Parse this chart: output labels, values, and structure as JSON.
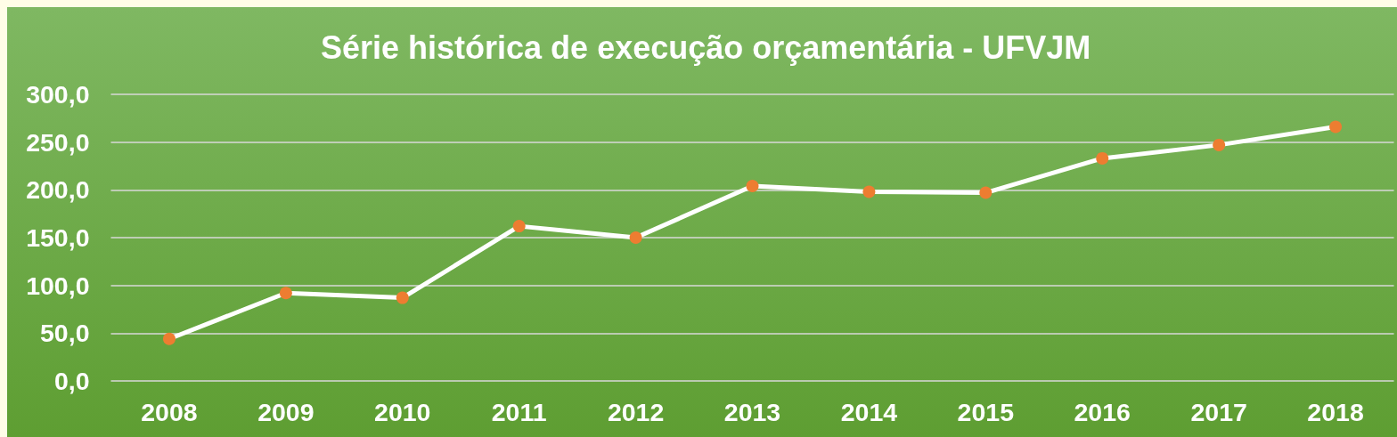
{
  "chart_data": {
    "type": "line",
    "title": "Série histórica de execução orçamentária - UFVJM",
    "categories": [
      "2008",
      "2009",
      "2010",
      "2011",
      "2012",
      "2013",
      "2014",
      "2015",
      "2016",
      "2017",
      "2018"
    ],
    "series": [
      {
        "color": "#ffffff",
        "colors": [
          "#ed7d31",
          "#ed7d31",
          "#ed7d31",
          "#ed7d31",
          "#ed7d31",
          "#ed7d31",
          "#ed7d31",
          "#ed7d31",
          "#ed7d31",
          "#ed7d31",
          "#ed7d31"
        ],
        "values": [
          44,
          92,
          87,
          162,
          150,
          204,
          198,
          197,
          233,
          247,
          266
        ]
      }
    ],
    "ylim": [
      0,
      300
    ],
    "yticks": [
      {
        "value": 0,
        "label": "0,0"
      },
      {
        "value": 50,
        "label": "50,0"
      },
      {
        "value": 100,
        "label": "100,0"
      },
      {
        "value": 150,
        "label": "150,0"
      },
      {
        "value": 200,
        "label": "200,0"
      },
      {
        "value": 250,
        "label": "250,0"
      },
      {
        "value": 300,
        "label": "300,0"
      }
    ],
    "grid": "y",
    "marker": "circle",
    "line_style": "solid"
  }
}
